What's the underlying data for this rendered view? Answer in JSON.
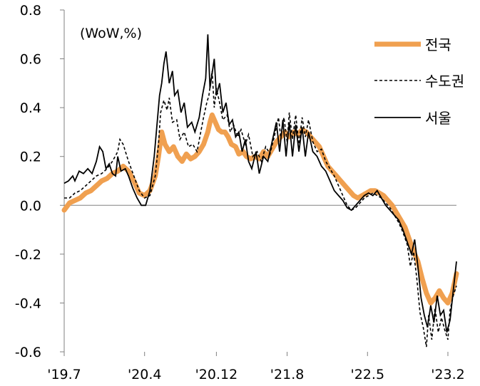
{
  "chart_data": {
    "type": "line",
    "unit_label": "(WoW,%)",
    "xlabel": "",
    "ylabel": "",
    "ylim": [
      -0.6,
      0.8
    ],
    "y_ticks": [
      "0.8",
      "0.6",
      "0.4",
      "0.2",
      "0.0",
      "-0.2",
      "-0.4",
      "-0.6"
    ],
    "x_ticks": [
      {
        "label": "'19.7",
        "t": 0
      },
      {
        "label": "'20.4",
        "t": 0.75
      },
      {
        "label": "'20.12",
        "t": 1.42
      },
      {
        "label": "'21.8",
        "t": 2.08
      },
      {
        "label": "'22.5",
        "t": 2.83
      },
      {
        "label": "'23.2",
        "t": 3.58
      }
    ],
    "grid": false,
    "legend_position": "top-right",
    "series": [
      {
        "name": "전국",
        "color": "#F0A050",
        "style": "thick",
        "points": [
          [
            0,
            -0.02
          ],
          [
            0.05,
            0.01
          ],
          [
            0.1,
            0.02
          ],
          [
            0.15,
            0.03
          ],
          [
            0.2,
            0.05
          ],
          [
            0.25,
            0.06
          ],
          [
            0.3,
            0.08
          ],
          [
            0.35,
            0.1
          ],
          [
            0.4,
            0.11
          ],
          [
            0.45,
            0.13
          ],
          [
            0.5,
            0.14
          ],
          [
            0.55,
            0.16
          ],
          [
            0.6,
            0.14
          ],
          [
            0.65,
            0.1
          ],
          [
            0.7,
            0.05
          ],
          [
            0.75,
            0.04
          ],
          [
            0.8,
            0.06
          ],
          [
            0.85,
            0.12
          ],
          [
            0.88,
            0.2
          ],
          [
            0.91,
            0.3
          ],
          [
            0.94,
            0.25
          ],
          [
            0.98,
            0.22
          ],
          [
            1.02,
            0.24
          ],
          [
            1.06,
            0.2
          ],
          [
            1.1,
            0.18
          ],
          [
            1.14,
            0.21
          ],
          [
            1.18,
            0.19
          ],
          [
            1.22,
            0.2
          ],
          [
            1.26,
            0.22
          ],
          [
            1.3,
            0.25
          ],
          [
            1.34,
            0.3
          ],
          [
            1.36,
            0.34
          ],
          [
            1.38,
            0.37
          ],
          [
            1.41,
            0.34
          ],
          [
            1.44,
            0.31
          ],
          [
            1.47,
            0.3
          ],
          [
            1.5,
            0.3
          ],
          [
            1.53,
            0.28
          ],
          [
            1.56,
            0.25
          ],
          [
            1.6,
            0.24
          ],
          [
            1.63,
            0.21
          ],
          [
            1.67,
            0.22
          ],
          [
            1.7,
            0.2
          ],
          [
            1.74,
            0.19
          ],
          [
            1.78,
            0.2
          ],
          [
            1.82,
            0.19
          ],
          [
            1.86,
            0.22
          ],
          [
            1.9,
            0.2
          ],
          [
            1.94,
            0.23
          ],
          [
            1.98,
            0.26
          ],
          [
            2.02,
            0.28
          ],
          [
            2.06,
            0.3
          ],
          [
            2.1,
            0.28
          ],
          [
            2.14,
            0.3
          ],
          [
            2.18,
            0.29
          ],
          [
            2.22,
            0.31
          ],
          [
            2.26,
            0.3
          ],
          [
            2.3,
            0.28
          ],
          [
            2.34,
            0.26
          ],
          [
            2.38,
            0.24
          ],
          [
            2.42,
            0.2
          ],
          [
            2.46,
            0.16
          ],
          [
            2.5,
            0.14
          ],
          [
            2.54,
            0.12
          ],
          [
            2.58,
            0.1
          ],
          [
            2.62,
            0.08
          ],
          [
            2.66,
            0.06
          ],
          [
            2.7,
            0.04
          ],
          [
            2.74,
            0.03
          ],
          [
            2.78,
            0.04
          ],
          [
            2.82,
            0.05
          ],
          [
            2.86,
            0.06
          ],
          [
            2.9,
            0.06
          ],
          [
            2.94,
            0.05
          ],
          [
            2.98,
            0.04
          ],
          [
            3.02,
            0.02
          ],
          [
            3.06,
            0.0
          ],
          [
            3.1,
            -0.03
          ],
          [
            3.14,
            -0.06
          ],
          [
            3.18,
            -0.09
          ],
          [
            3.22,
            -0.14
          ],
          [
            3.26,
            -0.19
          ],
          [
            3.3,
            -0.23
          ],
          [
            3.34,
            -0.3
          ],
          [
            3.38,
            -0.36
          ],
          [
            3.42,
            -0.4
          ],
          [
            3.46,
            -0.38
          ],
          [
            3.5,
            -0.35
          ],
          [
            3.54,
            -0.38
          ],
          [
            3.58,
            -0.4
          ],
          [
            3.62,
            -0.36
          ],
          [
            3.66,
            -0.28
          ]
        ]
      },
      {
        "name": "수도권",
        "color": "#000000",
        "style": "dashed",
        "points": [
          [
            0,
            0.03
          ],
          [
            0.05,
            0.03
          ],
          [
            0.1,
            0.05
          ],
          [
            0.15,
            0.06
          ],
          [
            0.2,
            0.08
          ],
          [
            0.25,
            0.1
          ],
          [
            0.3,
            0.12
          ],
          [
            0.35,
            0.13
          ],
          [
            0.4,
            0.15
          ],
          [
            0.45,
            0.18
          ],
          [
            0.5,
            0.22
          ],
          [
            0.52,
            0.27
          ],
          [
            0.55,
            0.25
          ],
          [
            0.6,
            0.18
          ],
          [
            0.65,
            0.12
          ],
          [
            0.7,
            0.06
          ],
          [
            0.75,
            0.03
          ],
          [
            0.8,
            0.04
          ],
          [
            0.85,
            0.12
          ],
          [
            0.88,
            0.25
          ],
          [
            0.9,
            0.38
          ],
          [
            0.93,
            0.43
          ],
          [
            0.96,
            0.39
          ],
          [
            0.98,
            0.44
          ],
          [
            1.01,
            0.34
          ],
          [
            1.05,
            0.35
          ],
          [
            1.08,
            0.27
          ],
          [
            1.12,
            0.3
          ],
          [
            1.16,
            0.24
          ],
          [
            1.2,
            0.25
          ],
          [
            1.24,
            0.22
          ],
          [
            1.27,
            0.29
          ],
          [
            1.3,
            0.36
          ],
          [
            1.33,
            0.42
          ],
          [
            1.35,
            0.45
          ],
          [
            1.38,
            0.55
          ],
          [
            1.4,
            0.4
          ],
          [
            1.42,
            0.48
          ],
          [
            1.45,
            0.42
          ],
          [
            1.48,
            0.35
          ],
          [
            1.52,
            0.37
          ],
          [
            1.55,
            0.3
          ],
          [
            1.58,
            0.33
          ],
          [
            1.62,
            0.28
          ],
          [
            1.65,
            0.31
          ],
          [
            1.69,
            0.25
          ],
          [
            1.72,
            0.29
          ],
          [
            1.76,
            0.2
          ],
          [
            1.8,
            0.22
          ],
          [
            1.84,
            0.18
          ],
          [
            1.88,
            0.24
          ],
          [
            1.92,
            0.21
          ],
          [
            1.96,
            0.28
          ],
          [
            2.0,
            0.36
          ],
          [
            2.02,
            0.28
          ],
          [
            2.05,
            0.36
          ],
          [
            2.08,
            0.26
          ],
          [
            2.1,
            0.38
          ],
          [
            2.13,
            0.27
          ],
          [
            2.16,
            0.37
          ],
          [
            2.19,
            0.25
          ],
          [
            2.22,
            0.36
          ],
          [
            2.25,
            0.28
          ],
          [
            2.28,
            0.35
          ],
          [
            2.32,
            0.26
          ],
          [
            2.36,
            0.22
          ],
          [
            2.4,
            0.23
          ],
          [
            2.44,
            0.18
          ],
          [
            2.48,
            0.15
          ],
          [
            2.52,
            0.12
          ],
          [
            2.56,
            0.08
          ],
          [
            2.6,
            0.04
          ],
          [
            2.64,
            0.0
          ],
          [
            2.68,
            -0.02
          ],
          [
            2.72,
            -0.01
          ],
          [
            2.76,
            0.01
          ],
          [
            2.8,
            0.03
          ],
          [
            2.84,
            0.04
          ],
          [
            2.88,
            0.05
          ],
          [
            2.92,
            0.04
          ],
          [
            2.96,
            0.03
          ],
          [
            3.0,
            0.01
          ],
          [
            3.04,
            -0.01
          ],
          [
            3.08,
            -0.04
          ],
          [
            3.12,
            -0.07
          ],
          [
            3.16,
            -0.11
          ],
          [
            3.2,
            -0.16
          ],
          [
            3.23,
            -0.25
          ],
          [
            3.26,
            -0.19
          ],
          [
            3.29,
            -0.3
          ],
          [
            3.32,
            -0.44
          ],
          [
            3.35,
            -0.5
          ],
          [
            3.38,
            -0.58
          ],
          [
            3.4,
            -0.45
          ],
          [
            3.43,
            -0.55
          ],
          [
            3.46,
            -0.42
          ],
          [
            3.49,
            -0.52
          ],
          [
            3.52,
            -0.46
          ],
          [
            3.55,
            -0.51
          ],
          [
            3.58,
            -0.55
          ],
          [
            3.6,
            -0.43
          ],
          [
            3.63,
            -0.37
          ],
          [
            3.66,
            -0.33
          ]
        ]
      },
      {
        "name": "서울",
        "color": "#000000",
        "style": "solid",
        "points": [
          [
            0,
            0.09
          ],
          [
            0.04,
            0.1
          ],
          [
            0.08,
            0.12
          ],
          [
            0.1,
            0.1
          ],
          [
            0.14,
            0.14
          ],
          [
            0.18,
            0.13
          ],
          [
            0.22,
            0.15
          ],
          [
            0.26,
            0.13
          ],
          [
            0.3,
            0.18
          ],
          [
            0.33,
            0.24
          ],
          [
            0.36,
            0.22
          ],
          [
            0.39,
            0.15
          ],
          [
            0.42,
            0.17
          ],
          [
            0.45,
            0.13
          ],
          [
            0.48,
            0.12
          ],
          [
            0.5,
            0.2
          ],
          [
            0.53,
            0.14
          ],
          [
            0.57,
            0.15
          ],
          [
            0.6,
            0.12
          ],
          [
            0.64,
            0.07
          ],
          [
            0.68,
            0.03
          ],
          [
            0.72,
            0.0
          ],
          [
            0.76,
            0.0
          ],
          [
            0.8,
            0.06
          ],
          [
            0.84,
            0.2
          ],
          [
            0.87,
            0.35
          ],
          [
            0.89,
            0.45
          ],
          [
            0.91,
            0.5
          ],
          [
            0.93,
            0.58
          ],
          [
            0.95,
            0.63
          ],
          [
            0.98,
            0.5
          ],
          [
            1.01,
            0.55
          ],
          [
            1.03,
            0.45
          ],
          [
            1.06,
            0.47
          ],
          [
            1.09,
            0.38
          ],
          [
            1.12,
            0.42
          ],
          [
            1.15,
            0.32
          ],
          [
            1.19,
            0.34
          ],
          [
            1.22,
            0.3
          ],
          [
            1.26,
            0.36
          ],
          [
            1.29,
            0.45
          ],
          [
            1.32,
            0.52
          ],
          [
            1.34,
            0.7
          ],
          [
            1.36,
            0.48
          ],
          [
            1.38,
            0.54
          ],
          [
            1.4,
            0.6
          ],
          [
            1.42,
            0.45
          ],
          [
            1.45,
            0.5
          ],
          [
            1.48,
            0.38
          ],
          [
            1.51,
            0.42
          ],
          [
            1.54,
            0.33
          ],
          [
            1.57,
            0.35
          ],
          [
            1.6,
            0.28
          ],
          [
            1.63,
            0.3
          ],
          [
            1.66,
            0.22
          ],
          [
            1.69,
            0.27
          ],
          [
            1.72,
            0.18
          ],
          [
            1.75,
            0.15
          ],
          [
            1.79,
            0.22
          ],
          [
            1.82,
            0.13
          ],
          [
            1.86,
            0.2
          ],
          [
            1.9,
            0.18
          ],
          [
            1.94,
            0.26
          ],
          [
            1.98,
            0.34
          ],
          [
            2.01,
            0.22
          ],
          [
            2.04,
            0.35
          ],
          [
            2.07,
            0.2
          ],
          [
            2.1,
            0.34
          ],
          [
            2.13,
            0.2
          ],
          [
            2.16,
            0.33
          ],
          [
            2.19,
            0.22
          ],
          [
            2.22,
            0.32
          ],
          [
            2.25,
            0.2
          ],
          [
            2.28,
            0.3
          ],
          [
            2.32,
            0.22
          ],
          [
            2.36,
            0.2
          ],
          [
            2.4,
            0.16
          ],
          [
            2.44,
            0.14
          ],
          [
            2.48,
            0.1
          ],
          [
            2.52,
            0.06
          ],
          [
            2.56,
            0.04
          ],
          [
            2.6,
            0.02
          ],
          [
            2.64,
            -0.01
          ],
          [
            2.68,
            -0.02
          ],
          [
            2.72,
            0.0
          ],
          [
            2.76,
            0.02
          ],
          [
            2.8,
            0.04
          ],
          [
            2.84,
            0.05
          ],
          [
            2.88,
            0.04
          ],
          [
            2.92,
            0.06
          ],
          [
            2.96,
            0.03
          ],
          [
            3.0,
            0.0
          ],
          [
            3.04,
            -0.02
          ],
          [
            3.08,
            -0.04
          ],
          [
            3.12,
            -0.06
          ],
          [
            3.16,
            -0.1
          ],
          [
            3.2,
            -0.15
          ],
          [
            3.24,
            -0.2
          ],
          [
            3.27,
            -0.14
          ],
          [
            3.3,
            -0.25
          ],
          [
            3.33,
            -0.38
          ],
          [
            3.36,
            -0.45
          ],
          [
            3.39,
            -0.5
          ],
          [
            3.42,
            -0.41
          ],
          [
            3.45,
            -0.48
          ],
          [
            3.48,
            -0.37
          ],
          [
            3.51,
            -0.45
          ],
          [
            3.54,
            -0.43
          ],
          [
            3.57,
            -0.52
          ],
          [
            3.6,
            -0.47
          ],
          [
            3.63,
            -0.35
          ],
          [
            3.66,
            -0.23
          ]
        ]
      }
    ]
  }
}
